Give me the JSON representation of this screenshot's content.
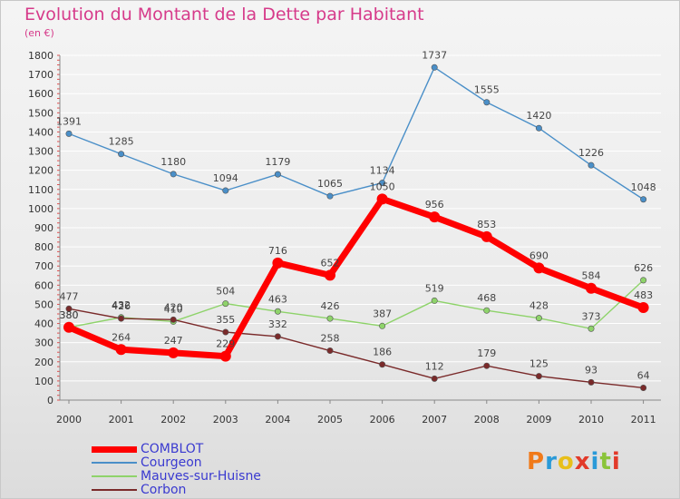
{
  "title": "Evolution du Montant de la Dette par Habitant",
  "subtitle": "(en €)",
  "logo_text": "Proxiti",
  "chart_data": {
    "type": "line",
    "title": "Evolution du Montant de la Dette par Habitant",
    "ylabel": "(en €)",
    "xlabel": "",
    "x": [
      "2000",
      "2001",
      "2002",
      "2003",
      "2004",
      "2005",
      "2006",
      "2007",
      "2008",
      "2009",
      "2010",
      "2011"
    ],
    "ylim": [
      0,
      1800
    ],
    "yticks": [
      0,
      100,
      200,
      300,
      400,
      500,
      600,
      700,
      800,
      900,
      1000,
      1100,
      1200,
      1300,
      1400,
      1500,
      1600,
      1700,
      1800
    ],
    "grid": "horizontal",
    "legend_position": "bottom-left",
    "series": [
      {
        "name": "COMBLOT",
        "color": "#ff0000",
        "values": [
          380,
          264,
          247,
          229,
          716,
          652,
          1050,
          956,
          853,
          690,
          584,
          483
        ],
        "labels": [
          "380",
          "264",
          "247",
          "229",
          "716",
          "652",
          "1050",
          "956",
          "853",
          "690",
          "584",
          "483"
        ]
      },
      {
        "name": "Courgeon",
        "color": "#4a8fc8",
        "values": [
          1391,
          1285,
          1180,
          1094,
          1179,
          1065,
          1134,
          1737,
          1555,
          1420,
          1226,
          1048
        ],
        "labels": [
          "1391",
          "1285",
          "1180",
          "1094",
          "1179",
          "1065",
          "1134",
          "1737",
          "1555",
          "1420",
          "1226",
          "1048"
        ]
      },
      {
        "name": "Mauves-sur-Huisne",
        "color": "#8ed36a",
        "values": [
          380,
          432,
          410,
          504,
          463,
          426,
          387,
          519,
          468,
          428,
          373,
          626
        ],
        "labels": [
          "380",
          "432",
          "410",
          "504",
          "463",
          "426",
          "387",
          "519",
          "468",
          "428",
          "373",
          "626"
        ]
      },
      {
        "name": "Corbon",
        "color": "#7a2a2a",
        "values": [
          477,
          426,
          420,
          355,
          332,
          258,
          186,
          112,
          179,
          125,
          93,
          64
        ],
        "labels": [
          "477",
          "426",
          "420",
          "355",
          "332",
          "258",
          "186",
          "112",
          "179",
          "125",
          "93",
          "64"
        ]
      }
    ]
  }
}
